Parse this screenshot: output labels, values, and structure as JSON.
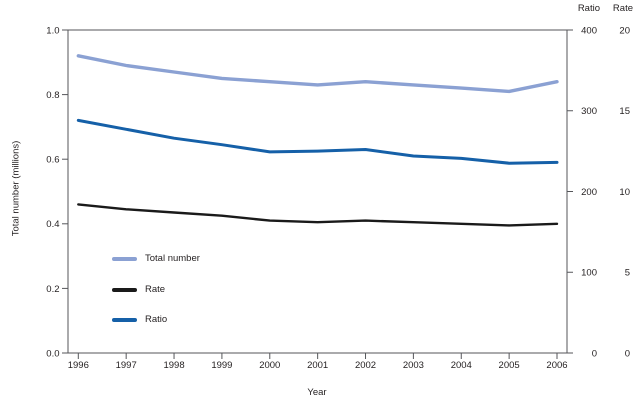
{
  "chart_data": {
    "type": "line",
    "title": "",
    "x": [
      1996,
      1997,
      1998,
      1999,
      2000,
      2001,
      2002,
      2003,
      2004,
      2005,
      2006
    ],
    "xlabel": "Year",
    "left_axis": {
      "label": "Total number (millions)",
      "min": 0,
      "max": 1.0,
      "tick_labels": [
        "0.0",
        "0.2",
        "0.4",
        "0.6",
        "0.8",
        "1.0"
      ]
    },
    "ratio_axis": {
      "label": "Ratio",
      "min": 0,
      "max": 400,
      "ticks": [
        0,
        100,
        200,
        300,
        400
      ]
    },
    "rate_axis": {
      "label": "Rate",
      "min": 0,
      "max": 20,
      "ticks": [
        0,
        5,
        10,
        15,
        20
      ]
    },
    "series": [
      {
        "name": "Total number",
        "axis": "left",
        "color": "#8BA1D3",
        "line_width": 3.4,
        "values": [
          0.92,
          0.89,
          0.87,
          0.85,
          0.84,
          0.83,
          0.84,
          0.83,
          0.82,
          0.81,
          0.84
        ]
      },
      {
        "name": "Rate",
        "axis": "rate",
        "color": "#1a1a1a",
        "line_width": 2.4,
        "values": [
          9.2,
          8.9,
          8.7,
          8.5,
          8.2,
          8.1,
          8.2,
          8.1,
          8.0,
          7.9,
          8.0
        ]
      },
      {
        "name": "Ratio",
        "axis": "ratio",
        "color": "#1560A8",
        "line_width": 3.0,
        "values": [
          288,
          277,
          266,
          258,
          249,
          250,
          252,
          244,
          241,
          235,
          236
        ]
      }
    ],
    "legend": {
      "position": "inside-lower-left",
      "entries": [
        "Total number",
        "Rate",
        "Ratio"
      ]
    },
    "grid": false,
    "frame_color": "#55565a",
    "text_color": "#231f20"
  }
}
